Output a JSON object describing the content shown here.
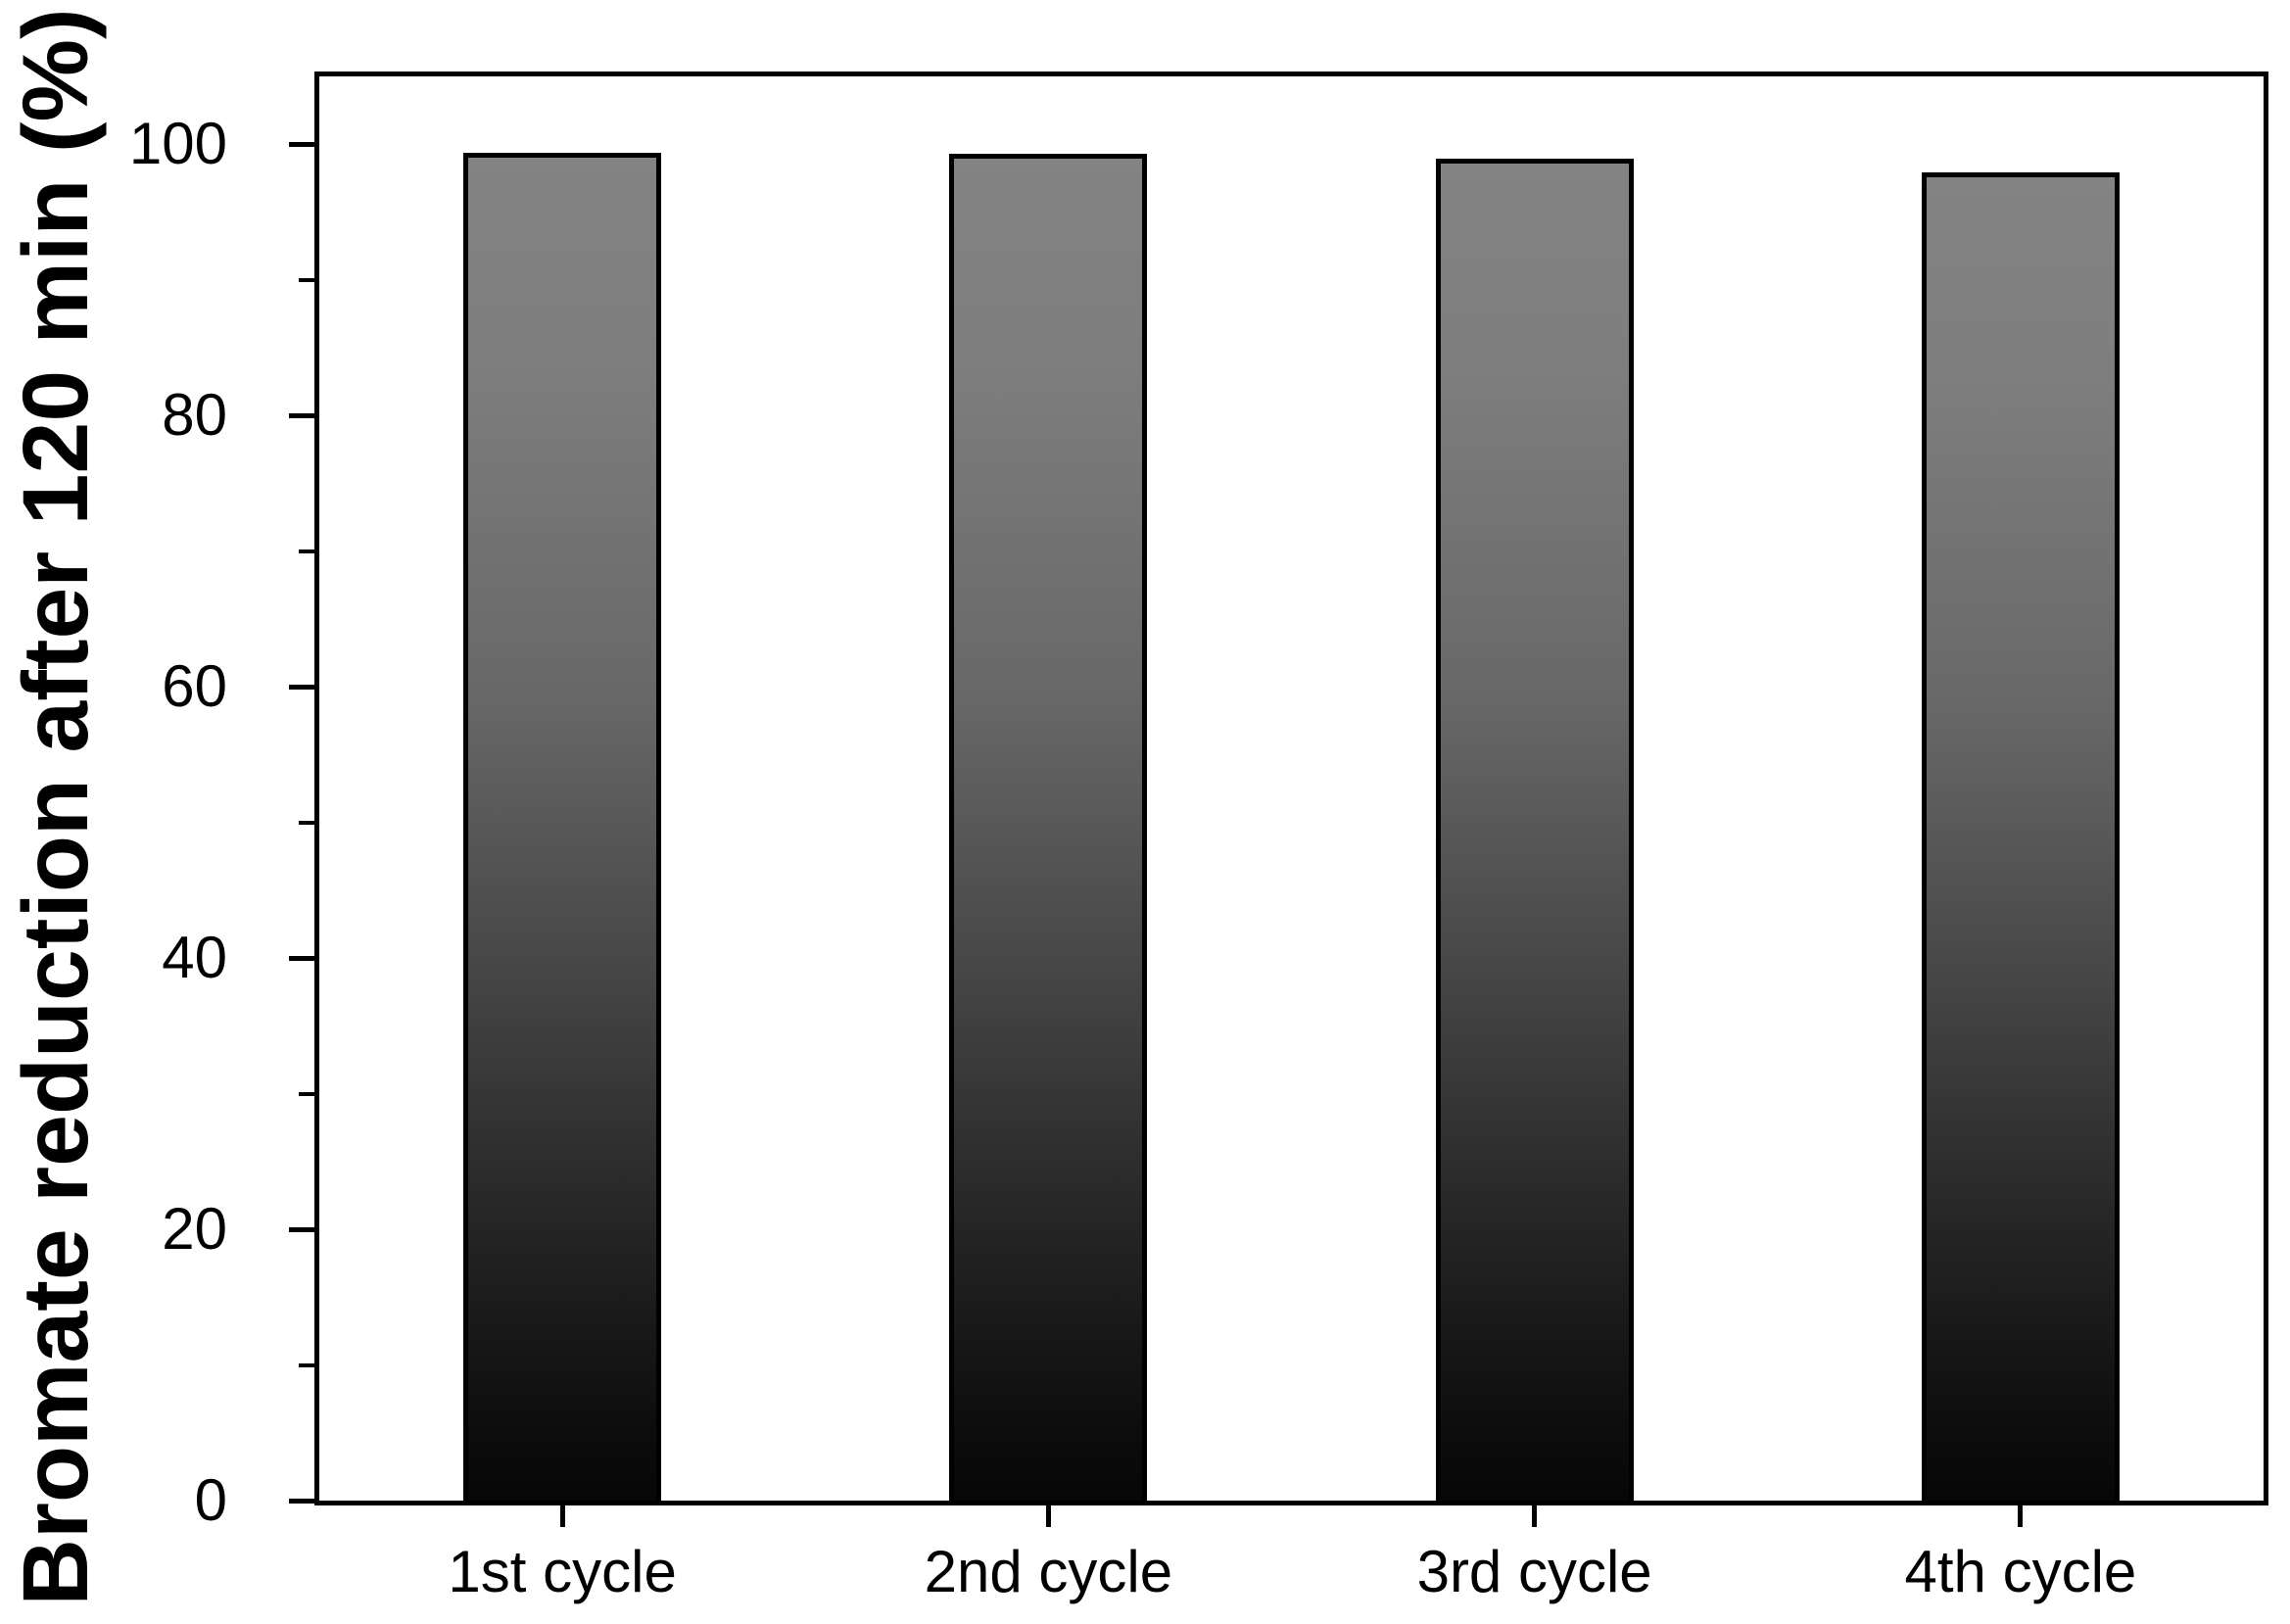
{
  "chart_data": {
    "type": "bar",
    "title": "",
    "categories": [
      "1st cycle",
      "2nd cycle",
      "3rd cycle",
      "4th cycle"
    ],
    "values": [
      99.4,
      99.3,
      98.9,
      97.9
    ],
    "xlabel": "",
    "ylabel": "Bromate reduction after 120 min (%)",
    "ylim": [
      0,
      105
    ],
    "yticks_major": [
      0,
      20,
      40,
      60,
      80,
      100
    ],
    "yticks_minor": [
      10,
      30,
      50,
      70,
      90
    ],
    "grid": false,
    "legend": false,
    "layout_hints": {
      "bar_fill": "gradient",
      "bar_gradient_top": "#828282",
      "bar_gradient_bottom": "#070707",
      "bar_border_color": "#000000",
      "axis_color": "#000000",
      "background_color": "#ffffff",
      "text_color": "#000000",
      "ticks_outside": true
    }
  }
}
